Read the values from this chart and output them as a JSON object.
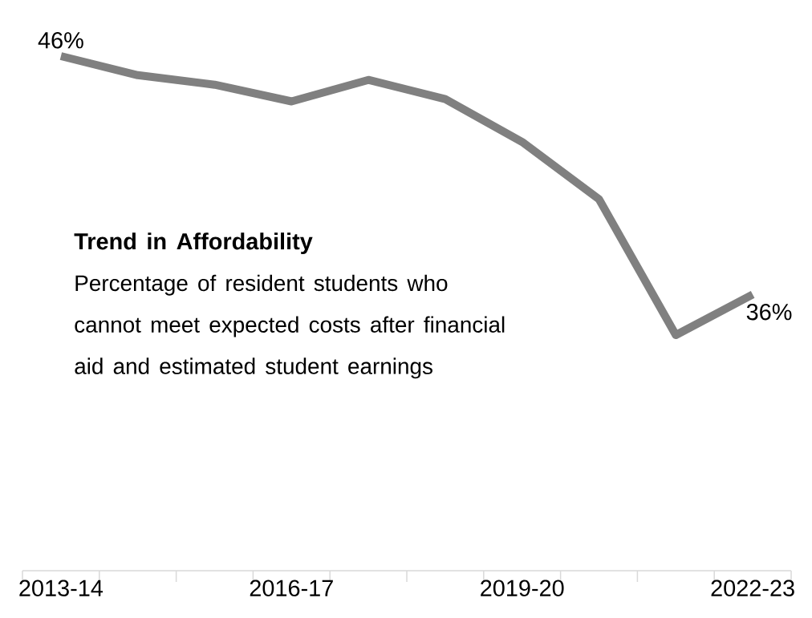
{
  "chart_data": {
    "type": "line",
    "title": "Trend in Affordability",
    "subtitle": "Percentage of resident students who cannot meet expected costs after financial aid and estimated student earnings",
    "categories": [
      "2013-14",
      null,
      null,
      "2016-17",
      null,
      null,
      "2019-20",
      null,
      null,
      "2022-23"
    ],
    "values": [
      46,
      45.2,
      44.8,
      44.1,
      45.0,
      44.2,
      42.4,
      40.0,
      34.3,
      36
    ],
    "value_labels": [
      "46%",
      null,
      null,
      null,
      null,
      null,
      null,
      null,
      null,
      "36%"
    ],
    "color": "#808080",
    "marker": "none",
    "line_style": "solid"
  }
}
